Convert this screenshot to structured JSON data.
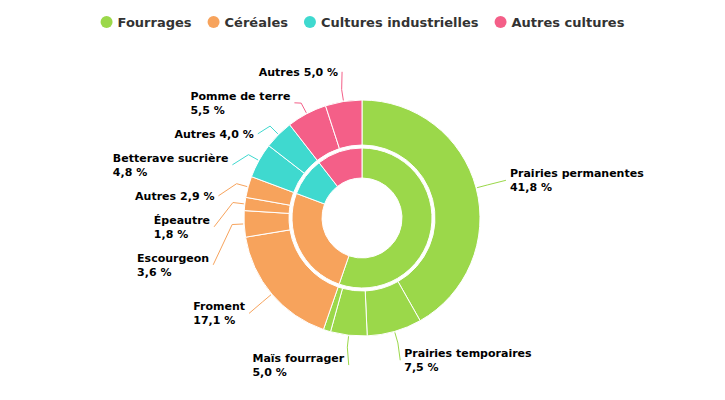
{
  "chart_data": {
    "type": "sunburst",
    "data_labels": true,
    "legend": "top",
    "series": [
      {
        "name": "Fourrages",
        "color": "#9bd84a",
        "categories": [
          "Prairies permanentes",
          "Prairies temporaires",
          "Maïs fourrager",
          null
        ],
        "values": [
          41.8,
          7.5,
          5.0,
          1.0
        ],
        "value_labels": [
          "41,8 %",
          "7,5 %",
          "5,0 %",
          null
        ]
      },
      {
        "name": "Céréales",
        "color": "#f7a35c",
        "categories": [
          "Froment",
          "Escourgeon",
          "Épeautre",
          "Autres"
        ],
        "values": [
          17.1,
          3.6,
          1.8,
          2.9
        ],
        "value_labels": [
          "17,1 %",
          "3,6 %",
          "1,8 %",
          "2,9 %"
        ]
      },
      {
        "name": "Cultures industrielles",
        "color": "#3fd9cf",
        "categories": [
          "Betterave sucrière",
          "Autres"
        ],
        "values": [
          4.8,
          4.0
        ],
        "value_labels": [
          "4,8 %",
          "4,0 %"
        ]
      },
      {
        "name": "Autres cultures",
        "color": "#f45f88",
        "categories": [
          "Pomme de terre",
          "Autres"
        ],
        "values": [
          5.5,
          5.0
        ],
        "value_labels": [
          "5,5 %",
          "5,0 %"
        ]
      }
    ]
  }
}
